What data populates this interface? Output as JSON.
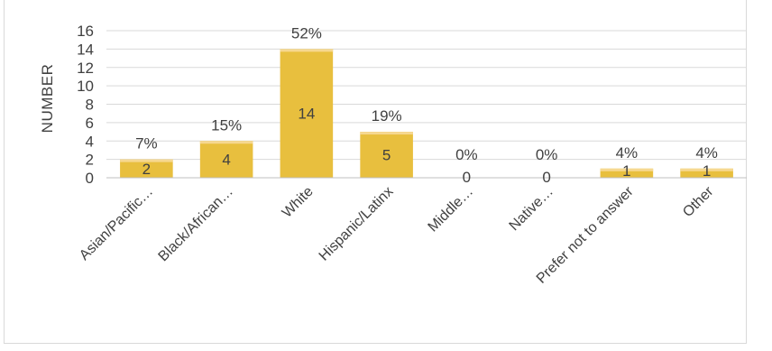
{
  "chart_data": {
    "type": "bar",
    "ylabel": "NUMBER",
    "ylim": [
      0,
      16
    ],
    "yticks": [
      0,
      2,
      4,
      6,
      8,
      10,
      12,
      14,
      16
    ],
    "grid": true,
    "categories": [
      "Asian/Pacific…",
      "Black/African…",
      "White",
      "Hispanic/Latinx",
      "Middle…",
      "Native…",
      "Prefer not to answer",
      "Other"
    ],
    "values": [
      2,
      4,
      14,
      5,
      0,
      0,
      1,
      1
    ],
    "value_labels": [
      "2",
      "4",
      "14",
      "5",
      "0",
      "0",
      "1",
      "1"
    ],
    "percent_labels": [
      "7%",
      "15%",
      "52%",
      "19%",
      "0%",
      "0%",
      "4%",
      "4%"
    ],
    "percent_values": [
      7.4,
      14.8,
      51.9,
      18.5,
      0,
      0,
      3.7,
      3.7
    ],
    "colors": {
      "bar": "#e8bf3e",
      "bar_top": "#f6d890",
      "grid": "#d9d9d9",
      "axis": "#bfbfbf",
      "text": "#404040"
    }
  }
}
